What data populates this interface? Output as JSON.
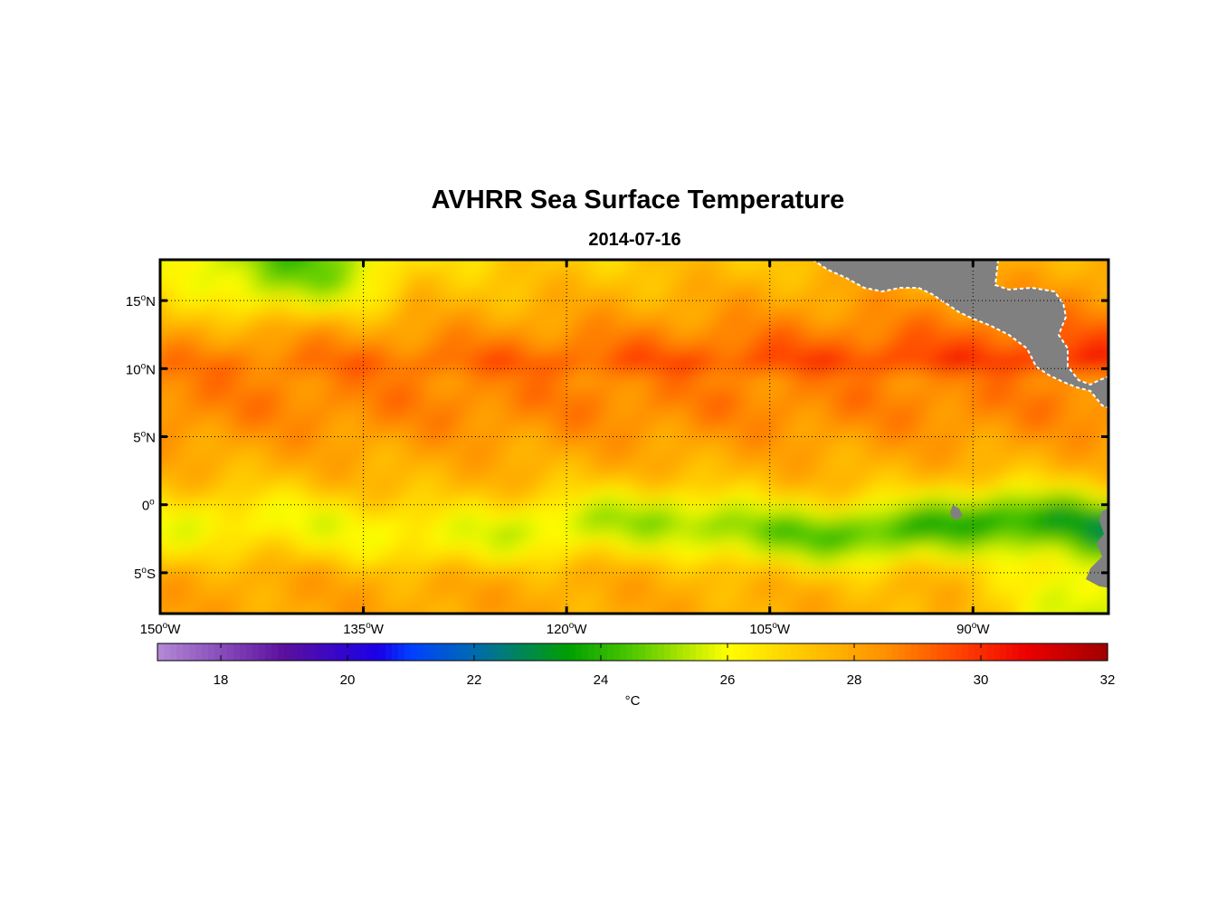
{
  "title": "AVHRR Sea Surface Temperature",
  "date": "2014-07-16",
  "map": {
    "lon_range": [
      -150,
      -80
    ],
    "lat_range": [
      -8,
      18
    ],
    "lat_ticks": [
      {
        "value": 15,
        "num": "15",
        "hemi": "N"
      },
      {
        "value": 10,
        "num": "10",
        "hemi": "N"
      },
      {
        "value": 5,
        "num": "5",
        "hemi": "N"
      },
      {
        "value": 0,
        "num": "0",
        "hemi": ""
      },
      {
        "value": -5,
        "num": "5",
        "hemi": "S"
      }
    ],
    "lon_ticks": [
      {
        "value": -150,
        "num": "150",
        "hemi": "W"
      },
      {
        "value": -135,
        "num": "135",
        "hemi": "W"
      },
      {
        "value": -120,
        "num": "120",
        "hemi": "W"
      },
      {
        "value": -105,
        "num": "105",
        "hemi": "W"
      },
      {
        "value": -90,
        "num": "90",
        "hemi": "W"
      }
    ],
    "land_color": "#808080",
    "degree_symbol": "o"
  },
  "colorbar": {
    "min": 17,
    "max": 32,
    "ticks": [
      18,
      20,
      22,
      24,
      26,
      28,
      30,
      32
    ],
    "units": "°C",
    "colors": [
      "#b48ad6",
      "#5b0f9e",
      "#1a00e8",
      "#0040ff",
      "#006ab0",
      "#00a000",
      "#50c800",
      "#ffff00",
      "#ffd000",
      "#ff9000",
      "#ff4000",
      "#ee0000",
      "#a00000"
    ],
    "color_stops": [
      17,
      19,
      20.5,
      21,
      22,
      23.5,
      24.5,
      26,
      27,
      28.5,
      29.7,
      30.7,
      32
    ]
  }
}
